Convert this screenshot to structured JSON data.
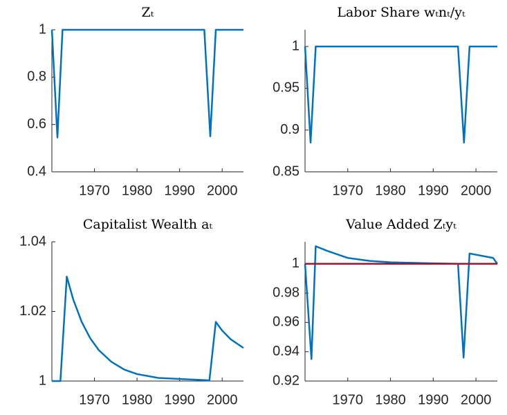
{
  "chart_data": [
    {
      "type": "line",
      "title": "Zₜ",
      "x": [
        1960,
        1961.3,
        1962.5,
        1995.8,
        1997.2,
        1998.5,
        2005
      ],
      "values": [
        1,
        0.545,
        1,
        1,
        0.55,
        1,
        1
      ],
      "color": "#0072BD",
      "xlim": [
        1960,
        2005
      ],
      "xticks": [
        1970,
        1980,
        1990,
        2000
      ],
      "ylim": [
        0.4,
        1
      ],
      "yticks": [
        0.4,
        0.6,
        0.8,
        1
      ]
    },
    {
      "type": "line",
      "title": "Labor Share wₜnₜ/yₜ",
      "x": [
        1960,
        1961.3,
        1962.5,
        1995.8,
        1997.2,
        1998.5,
        2005
      ],
      "values": [
        1,
        0.885,
        1,
        1,
        0.885,
        1,
        1
      ],
      "color": "#0072BD",
      "xlim": [
        1960,
        2005
      ],
      "xticks": [
        1970,
        1980,
        1990,
        2000
      ],
      "ylim": [
        0.85,
        1.02
      ],
      "yticks": [
        0.85,
        0.9,
        0.95,
        1
      ]
    },
    {
      "type": "line",
      "title": "Capitalist Wealth aₜ",
      "x": [
        1960,
        1962,
        1963.5,
        1965,
        1967,
        1969,
        1971,
        1974,
        1977,
        1980,
        1985,
        1990,
        1997,
        1998.5,
        2000,
        2002,
        2005
      ],
      "values": [
        1,
        1,
        1.03,
        1.0235,
        1.017,
        1.0123,
        1.0089,
        1.0055,
        1.0033,
        1.002,
        1.0009,
        1.0006,
        1.0002,
        1.017,
        1.0145,
        1.012,
        1.0095
      ],
      "color": "#0072BD",
      "xlim": [
        1960,
        2005
      ],
      "xticks": [
        1970,
        1980,
        1990,
        2000
      ],
      "ylim": [
        1,
        1.04
      ],
      "yticks": [
        1,
        1.02,
        1.04
      ]
    },
    {
      "type": "line",
      "title": "Value Added Zₜyₜ",
      "x": [
        1960,
        1961.5,
        1962.5,
        1965,
        1970,
        1975,
        1980,
        1990,
        1995.8,
        1997.1,
        1998.5,
        2004,
        2005
      ],
      "series": [
        {
          "color": "#0072BD",
          "values": [
            1,
            0.935,
            1.012,
            1.009,
            1.004,
            1.002,
            1.001,
            1.0003,
            1,
            0.936,
            1.007,
            1.004,
            1
          ]
        },
        {
          "color": "#A2142F",
          "values": [
            1,
            1,
            1,
            1,
            1,
            1,
            1,
            1,
            1,
            1,
            1,
            1,
            1
          ]
        }
      ],
      "xlim": [
        1960,
        2005
      ],
      "xticks": [
        1970,
        1980,
        1990,
        2000
      ],
      "ylim": [
        0.92,
        1.015
      ],
      "yticks": [
        0.92,
        0.94,
        0.96,
        0.98,
        1
      ]
    }
  ]
}
